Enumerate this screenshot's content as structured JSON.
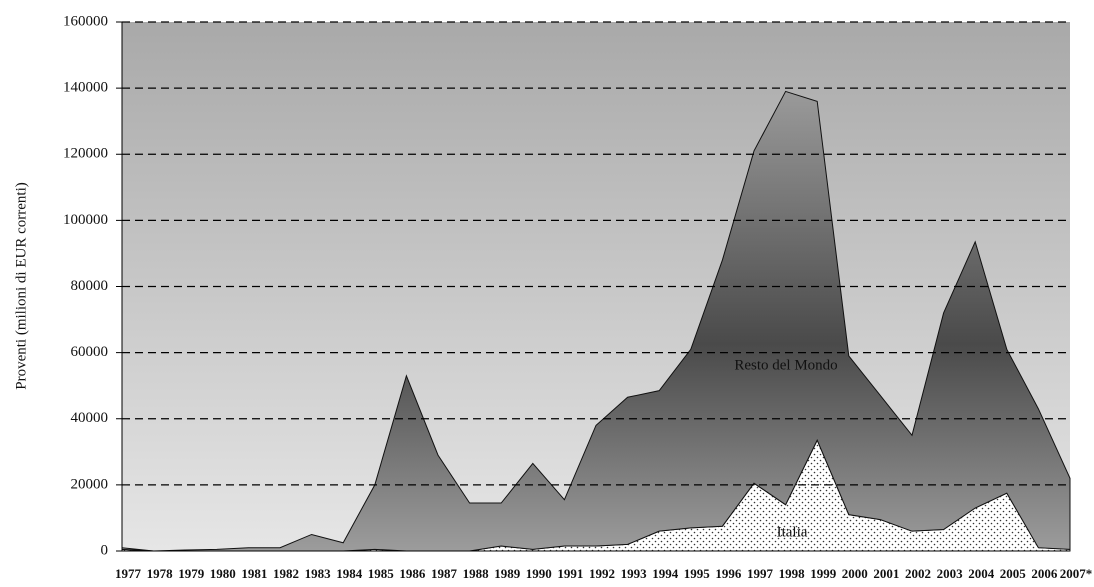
{
  "chart_data": {
    "type": "stacked-area",
    "y_label": "Proventi (milioni di EUR correnti)",
    "categories": [
      "1977",
      "1978",
      "1979",
      "1980",
      "1981",
      "1982",
      "1983",
      "1984",
      "1985",
      "1986",
      "1987",
      "1988",
      "1989",
      "1990",
      "1991",
      "1992",
      "1993",
      "1994",
      "1995",
      "1996",
      "1997",
      "1998",
      "1999",
      "2000",
      "2001",
      "2002",
      "2003",
      "2004",
      "2005",
      "2006",
      "2007*"
    ],
    "series": [
      {
        "name": "Italia",
        "color": "#ffffff",
        "values": [
          500,
          0,
          0,
          0,
          0,
          0,
          0,
          0,
          500,
          0,
          0,
          0,
          1500,
          500,
          1500,
          1500,
          2000,
          6000,
          7000,
          7500,
          20500,
          14000,
          33500,
          11000,
          9500,
          6000,
          6500,
          13000,
          17500,
          1000,
          500
        ]
      },
      {
        "name": "Resto del Mondo",
        "color": "#6e6e6e",
        "values": [
          500,
          0,
          300,
          500,
          1000,
          1000,
          5000,
          2500,
          19500,
          53000,
          29000,
          14500,
          13000,
          26000,
          14000,
          36500,
          44500,
          42500,
          54000,
          80500,
          100500,
          125000,
          102500,
          48000,
          37500,
          29000,
          65500,
          80500,
          43500,
          42000,
          21500
        ]
      }
    ],
    "ylim": [
      0,
      160000
    ],
    "yticks": [
      0,
      20000,
      40000,
      60000,
      80000,
      100000,
      120000,
      140000,
      160000
    ],
    "grid": true
  }
}
